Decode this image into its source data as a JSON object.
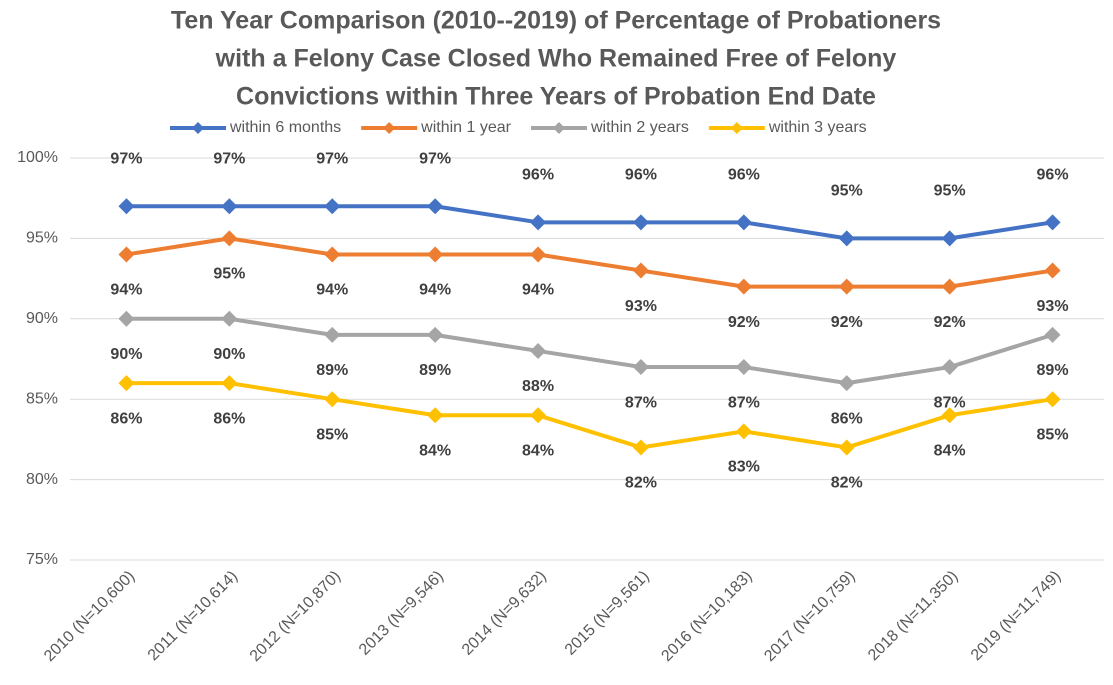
{
  "chart_data": {
    "type": "line",
    "title": [
      "Ten Year Comparison (2010--2019) of Percentage of Probationers",
      "with a Felony Case Closed Who Remained Free of Felony",
      "Convictions within Three Years of Probation End Date"
    ],
    "categories": [
      "2010 (N=10,600)",
      "2011 (N=10,614)",
      "2012 (N=10,870)",
      "2013 (N=9,546)",
      "2014 (N=9,632)",
      "2015 (N=9,561)",
      "2016 (N=10,183)",
      "2017 (N=10,759)",
      "2018 (N=11,350)",
      "2019 (N=11,749)"
    ],
    "series": [
      {
        "name": "within 6 months",
        "color": "#4472c4",
        "values": [
          97,
          97,
          97,
          97,
          96,
          96,
          96,
          95,
          95,
          96
        ],
        "value_labels": [
          "97%",
          "97%",
          "97%",
          "97%",
          "96%",
          "96%",
          "96%",
          "95%",
          "95%",
          "96%"
        ]
      },
      {
        "name": "within 1 year",
        "color": "#ed7d31",
        "values": [
          94,
          95,
          94,
          94,
          94,
          93,
          92,
          92,
          92,
          93
        ],
        "value_labels": [
          "94%",
          "95%",
          "94%",
          "94%",
          "94%",
          "93%",
          "92%",
          "92%",
          "92%",
          "93%"
        ]
      },
      {
        "name": "within 2 years",
        "color": "#a5a5a5",
        "values": [
          90,
          90,
          89,
          89,
          88,
          87,
          87,
          86,
          87,
          89
        ],
        "value_labels": [
          "90%",
          "90%",
          "89%",
          "89%",
          "88%",
          "87%",
          "87%",
          "86%",
          "87%",
          "89%"
        ]
      },
      {
        "name": "within 3 years",
        "color": "#ffc000",
        "values": [
          86,
          86,
          85,
          84,
          84,
          82,
          83,
          82,
          84,
          85
        ],
        "value_labels": [
          "86%",
          "86%",
          "85%",
          "84%",
          "84%",
          "82%",
          "83%",
          "82%",
          "84%",
          "85%"
        ]
      }
    ],
    "ylim": [
      75,
      100
    ],
    "yticks": [
      {
        "value": 75,
        "label": "75%"
      },
      {
        "value": 80,
        "label": "80%"
      },
      {
        "value": 85,
        "label": "85%"
      },
      {
        "value": 90,
        "label": "90%"
      },
      {
        "value": 95,
        "label": "95%"
      },
      {
        "value": 100,
        "label": "100%"
      }
    ],
    "grid": true,
    "legend": "top"
  }
}
